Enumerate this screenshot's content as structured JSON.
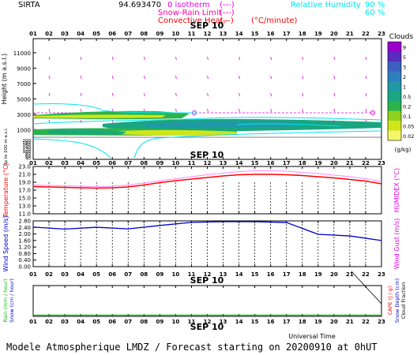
{
  "header": {
    "site": "SIRTA",
    "coords": "94.693470",
    "legend_isotherm": "0 isotherm",
    "legend_isotherm_sym": "(---)",
    "legend_snowrain": "Snow-Rain Limit",
    "legend_snowrain_sym": "(---)",
    "legend_convective": "Convective Heat.",
    "legend_convective_sym": "(—)",
    "legend_convective_unit": "(°C/minute)",
    "legend_rh": "Relative Humidity",
    "rh_values": [
      "90 %",
      "60 %"
    ]
  },
  "date_label": "SEP 10",
  "x_axis_label": "Universal Time",
  "footer": "Modele Atmospherique LMDZ / Forecast starting on 20200910 at 0hUT",
  "colors": {
    "magenta": "#e600e6",
    "cyan": "#00e5ee",
    "red": "#ff0000",
    "blue": "#0000c8",
    "green": "#00c000"
  },
  "chart_data": [
    {
      "type": "heatmap",
      "panel": "clouds",
      "hours": [
        "01",
        "02",
        "03",
        "04",
        "05",
        "06",
        "07",
        "08",
        "09",
        "10",
        "11",
        "12",
        "13",
        "14",
        "15",
        "16",
        "17",
        "18",
        "19",
        "20",
        "21",
        "22",
        "23"
      ],
      "ylabel": "Height (m a.s.l.)",
      "ylabel2": "Up to 200 m a.s.l.",
      "yticks_upper": [
        "11000",
        "9000",
        "7000",
        "5000",
        "3000",
        "1000"
      ],
      "yticks_lower": [
        "200",
        "180",
        "160",
        "140",
        "120",
        "100",
        "80",
        "60",
        "40"
      ],
      "colorbar_title": "Clouds",
      "colorbar_ticks": [
        "9",
        "5",
        "3",
        "2",
        "1",
        "0.5",
        "0.2",
        "0.1",
        "0.05",
        "0.02"
      ],
      "colorbar_unit": "(g/kg)",
      "colorbar_colors": [
        "#9900cc",
        "#5a2bbf",
        "#3d5fbf",
        "#2f7fbf",
        "#1f99a6",
        "#19a680",
        "#2ab34a",
        "#8fd11f",
        "#cfe51a",
        "#f5f56a"
      ],
      "cloud_layers": [
        {
          "name": "layer1",
          "height_m": [
            2700,
            3300
          ],
          "hours": [
            1,
            11
          ],
          "levels": [
            0.05,
            0.5
          ]
        },
        {
          "name": "layer2",
          "height_m": [
            1500,
            2200
          ],
          "hours": [
            4,
            23
          ],
          "levels": [
            0.05,
            1
          ]
        },
        {
          "name": "layer3",
          "height_m": [
            1000,
            1500
          ],
          "hours": [
            1,
            18
          ],
          "levels": [
            0.05,
            0.2
          ]
        }
      ]
    },
    {
      "type": "line",
      "panel": "temperature",
      "ylabel": "Temperature (°C)",
      "ylabel2": "HUMIDEX (°C)",
      "yticks": [
        "23.0",
        "21.0",
        "19.0",
        "17.0",
        "15.0",
        "13.0",
        "11.0"
      ],
      "ylim": [
        11,
        23
      ],
      "x": [
        1,
        2,
        3,
        4,
        5,
        6,
        7,
        8,
        9,
        10,
        11,
        12,
        13,
        14,
        15,
        16,
        17,
        18,
        19,
        20,
        21,
        22,
        23
      ],
      "series": [
        {
          "name": "Temperature",
          "color": "#ff0000",
          "values": [
            17.9,
            17.8,
            17.7,
            17.6,
            17.5,
            17.6,
            17.8,
            18.3,
            18.9,
            19.4,
            19.8,
            20.2,
            20.6,
            20.9,
            21.0,
            21.0,
            20.9,
            20.7,
            20.4,
            20.1,
            19.7,
            19.3,
            18.6
          ]
        },
        {
          "name": "HUMIDEX",
          "color": "#ff88ff",
          "values": [
            18.3,
            18.2,
            18.1,
            18.0,
            17.9,
            18.0,
            18.3,
            18.8,
            19.4,
            19.9,
            20.4,
            20.9,
            21.3,
            21.7,
            21.9,
            21.9,
            21.8,
            21.5,
            21.2,
            20.8,
            20.4,
            19.9,
            19.2
          ]
        }
      ]
    },
    {
      "type": "line",
      "panel": "wind",
      "ylabel": "Wind Speed (m/s)",
      "ylabel2": "Wind Gust (m/s)",
      "yticks": [
        "2.80",
        "2.40",
        "2.00",
        "1.60",
        "1.20",
        "0.80",
        "0.40",
        "0.00"
      ],
      "ylim": [
        0,
        2.8
      ],
      "x": [
        1,
        3,
        5,
        7,
        9,
        11,
        13,
        15,
        17,
        19,
        21,
        23
      ],
      "series": [
        {
          "name": "Wind Speed",
          "color": "#0000c8",
          "values": [
            2.42,
            2.3,
            2.41,
            2.31,
            2.52,
            2.71,
            2.75,
            2.75,
            2.7,
            1.98,
            1.88,
            1.6
          ]
        }
      ]
    },
    {
      "type": "line",
      "panel": "precip",
      "ylabel_left": [
        "Rain (mm / hour)",
        "Snow (cm / hour)"
      ],
      "ylabel_right": [
        "CAPE (J / g)",
        "Snow Depth (cm)",
        "Cloud Fraction"
      ],
      "x": [
        1,
        23
      ],
      "series": [
        {
          "name": "Rain",
          "color": "#00c000",
          "values": [
            0.0,
            0.0
          ]
        },
        {
          "name": "Cloud Fraction",
          "color": "#000000",
          "values": [
            1.0,
            0.0
          ]
        }
      ]
    }
  ]
}
